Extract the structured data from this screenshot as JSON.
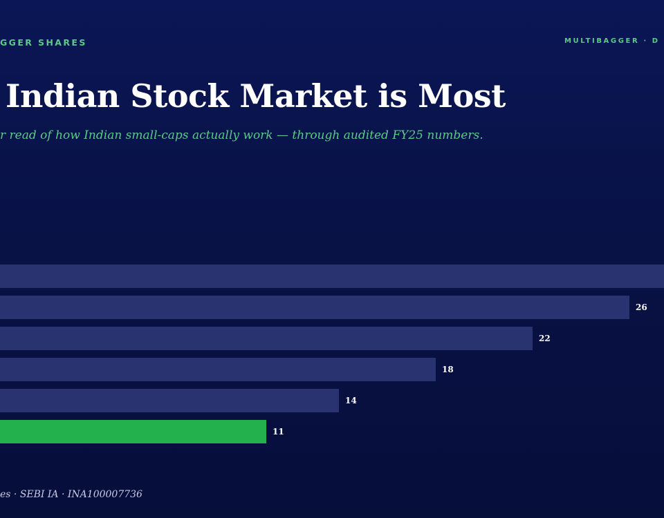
{
  "header": {
    "kicker_left": "GGER SHARES",
    "kicker_right": "MULTIBAGGER · D"
  },
  "headline": {
    "title": "Indian Stock Market is Most",
    "subtitle": "r read of how Indian small-caps actually work — through audited FY25 numbers."
  },
  "colors": {
    "bar": "#283370",
    "highlight_bar": "#22b14c",
    "accent_text": "#5cc98a"
  },
  "chart_data": {
    "type": "bar",
    "orientation": "horizontal",
    "values": [
      30,
      26,
      22,
      18,
      14,
      11
    ],
    "labels": [
      "",
      "26",
      "22",
      "18",
      "14",
      "11"
    ],
    "highlight_index": 5,
    "grid": false
  },
  "footer": {
    "text": "es · SEBI IA · INA100007736"
  }
}
